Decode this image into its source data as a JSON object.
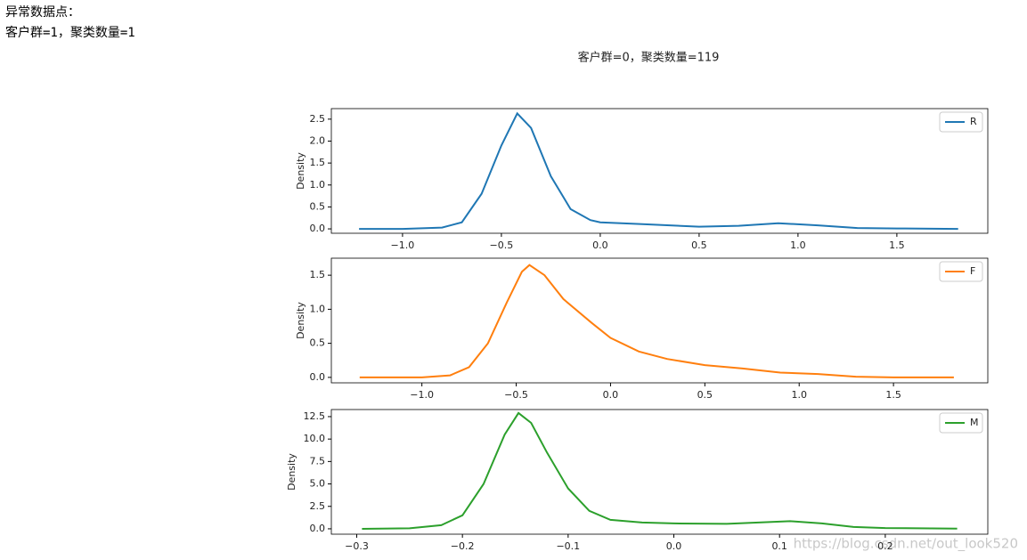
{
  "output_lines": [
    "异常数据点：",
    "客户群=1，聚类数量=1"
  ],
  "figure_title": "客户群=0，聚类数量=119",
  "watermark": "https://blog.csdn.net/out_look520",
  "chart_data": [
    {
      "type": "line",
      "ylabel": "Density",
      "legend": "upper right",
      "x": [
        -1.22,
        -1.0,
        -0.8,
        -0.7,
        -0.6,
        -0.5,
        -0.42,
        -0.35,
        -0.25,
        -0.15,
        -0.05,
        0.0,
        0.2,
        0.5,
        0.7,
        0.9,
        1.1,
        1.3,
        1.5,
        1.81
      ],
      "series": [
        {
          "name": "R",
          "color": "#1f77b4",
          "values": [
            0.0,
            0.0,
            0.03,
            0.15,
            0.8,
            1.9,
            2.63,
            2.3,
            1.2,
            0.45,
            0.2,
            0.15,
            0.11,
            0.05,
            0.07,
            0.13,
            0.08,
            0.02,
            0.01,
            0.0
          ]
        }
      ],
      "xlim": [
        -1.36,
        1.96
      ],
      "ylim": [
        -0.1,
        2.74
      ],
      "xticks": [
        {
          "value": -1.0,
          "label": "−1.0"
        },
        {
          "value": -0.5,
          "label": "−0.5"
        },
        {
          "value": 0,
          "label": "0.0"
        },
        0.5,
        {
          "value": 1,
          "label": "1.0"
        },
        1.5
      ],
      "yticks": [
        {
          "value": 0,
          "label": "0.0"
        },
        0.5,
        {
          "value": 1,
          "label": "1.0"
        },
        1.5,
        {
          "value": 2,
          "label": "2.0"
        },
        2.5
      ]
    },
    {
      "type": "line",
      "ylabel": "Density",
      "legend": "upper right",
      "x": [
        -1.33,
        -1.0,
        -0.85,
        -0.75,
        -0.65,
        -0.55,
        -0.47,
        -0.43,
        -0.35,
        -0.25,
        -0.1,
        0.0,
        0.15,
        0.3,
        0.5,
        0.7,
        0.9,
        1.1,
        1.3,
        1.5,
        1.82
      ],
      "series": [
        {
          "name": "F",
          "color": "#ff7f0e",
          "values": [
            0.0,
            0.0,
            0.03,
            0.15,
            0.5,
            1.1,
            1.55,
            1.65,
            1.5,
            1.15,
            0.8,
            0.58,
            0.38,
            0.27,
            0.18,
            0.13,
            0.07,
            0.05,
            0.01,
            0.0,
            0.0
          ]
        }
      ],
      "xlim": [
        -1.48,
        2.0
      ],
      "ylim": [
        -0.08,
        1.75
      ],
      "xticks": [
        {
          "value": -1.0,
          "label": "−1.0"
        },
        {
          "value": -0.5,
          "label": "−0.5"
        },
        {
          "value": 0,
          "label": "0.0"
        },
        0.5,
        {
          "value": 1,
          "label": "1.0"
        },
        1.5
      ],
      "yticks": [
        {
          "value": 0,
          "label": "0.0"
        },
        0.5,
        {
          "value": 1,
          "label": "1.0"
        },
        1.5
      ]
    },
    {
      "type": "line",
      "ylabel": "Density",
      "legend": "upper right",
      "x": [
        -0.295,
        -0.25,
        -0.22,
        -0.2,
        -0.18,
        -0.16,
        -0.147,
        -0.135,
        -0.12,
        -0.1,
        -0.08,
        -0.06,
        -0.03,
        0.0,
        0.05,
        0.08,
        0.11,
        0.14,
        0.17,
        0.2,
        0.268
      ],
      "series": [
        {
          "name": "M",
          "color": "#2ca02c",
          "values": [
            0.0,
            0.05,
            0.4,
            1.5,
            5.0,
            10.5,
            12.9,
            11.8,
            8.5,
            4.5,
            2.0,
            1.0,
            0.7,
            0.6,
            0.55,
            0.7,
            0.85,
            0.6,
            0.2,
            0.08,
            0.03
          ]
        }
      ],
      "xlim": [
        -0.324,
        0.297
      ],
      "ylim": [
        -0.6,
        13.29
      ],
      "xticks": [
        {
          "value": -0.3,
          "label": "−0.3"
        },
        {
          "value": -0.2,
          "label": "−0.2"
        },
        {
          "value": -0.1,
          "label": "−0.1"
        },
        {
          "value": 0,
          "label": "0.0"
        },
        0.1,
        0.2
      ],
      "yticks": [
        {
          "value": 0,
          "label": "0.0"
        },
        2.5,
        {
          "value": 5,
          "label": "5.0"
        },
        7.5,
        {
          "value": 10,
          "label": "10.0"
        },
        12.5
      ]
    }
  ]
}
